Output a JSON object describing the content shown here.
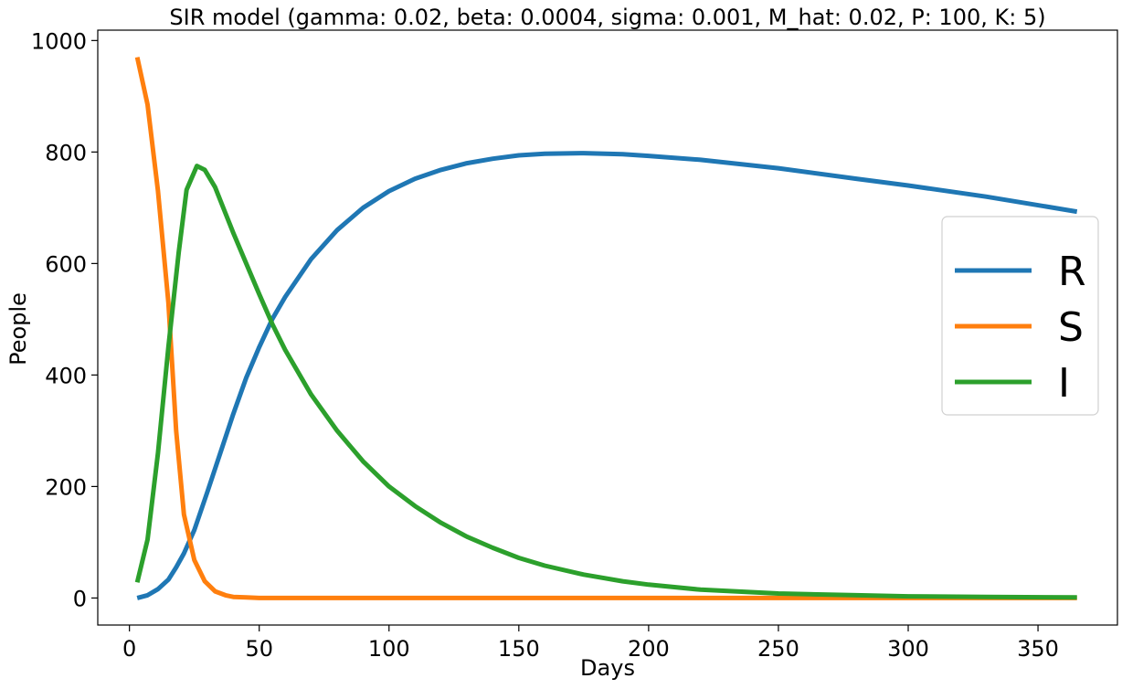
{
  "chart_data": {
    "type": "line",
    "title": "SIR model (gamma: 0.02, beta: 0.0004, sigma: 0.001, M_hat: 0.02, P: 100, K: 5)",
    "xlabel": "Days",
    "ylabel": "People",
    "xlim": [
      -12.2,
      380.6
    ],
    "ylim": [
      -48.5,
      1018.6
    ],
    "xticks": [
      0,
      50,
      100,
      150,
      200,
      250,
      300,
      350
    ],
    "yticks": [
      0,
      200,
      400,
      600,
      800,
      1000
    ],
    "grid": false,
    "legend_position": "right",
    "series": [
      {
        "name": "R",
        "color": "#1f77b4",
        "x": [
          3,
          7,
          11,
          15,
          18,
          21,
          25,
          30,
          35,
          40,
          45,
          50,
          55,
          60,
          70,
          80,
          90,
          100,
          110,
          120,
          130,
          140,
          150,
          160,
          175,
          190,
          200,
          220,
          250,
          280,
          300,
          330,
          365
        ],
        "y": [
          0,
          5,
          16,
          33,
          55,
          80,
          122,
          190,
          260,
          330,
          395,
          450,
          500,
          540,
          608,
          660,
          700,
          730,
          752,
          768,
          780,
          788,
          794,
          797,
          798,
          796,
          793,
          786,
          771,
          752,
          740,
          720,
          693
        ]
      },
      {
        "name": "S",
        "color": "#ff7f0e",
        "x": [
          3,
          7,
          11,
          15,
          18,
          21,
          25,
          29,
          33,
          37,
          40,
          45,
          50,
          60,
          80,
          100,
          150,
          200,
          250,
          300,
          365
        ],
        "y": [
          970,
          885,
          730,
          530,
          300,
          150,
          68,
          30,
          12,
          5,
          2,
          1,
          0,
          0,
          0,
          0,
          0,
          0,
          0,
          0,
          0
        ]
      },
      {
        "name": "I",
        "color": "#2ca02c",
        "x": [
          3,
          7,
          11,
          15,
          19,
          22,
          26,
          29,
          33,
          37,
          40,
          45,
          50,
          55,
          60,
          70,
          80,
          90,
          100,
          110,
          120,
          130,
          140,
          150,
          160,
          175,
          190,
          200,
          220,
          250,
          280,
          300,
          330,
          365
        ],
        "y": [
          28,
          105,
          260,
          450,
          620,
          732,
          775,
          768,
          737,
          690,
          655,
          600,
          545,
          492,
          445,
          365,
          300,
          245,
          200,
          165,
          135,
          110,
          90,
          72,
          58,
          42,
          30,
          24,
          15,
          8,
          5,
          3,
          2,
          1
        ]
      }
    ]
  }
}
